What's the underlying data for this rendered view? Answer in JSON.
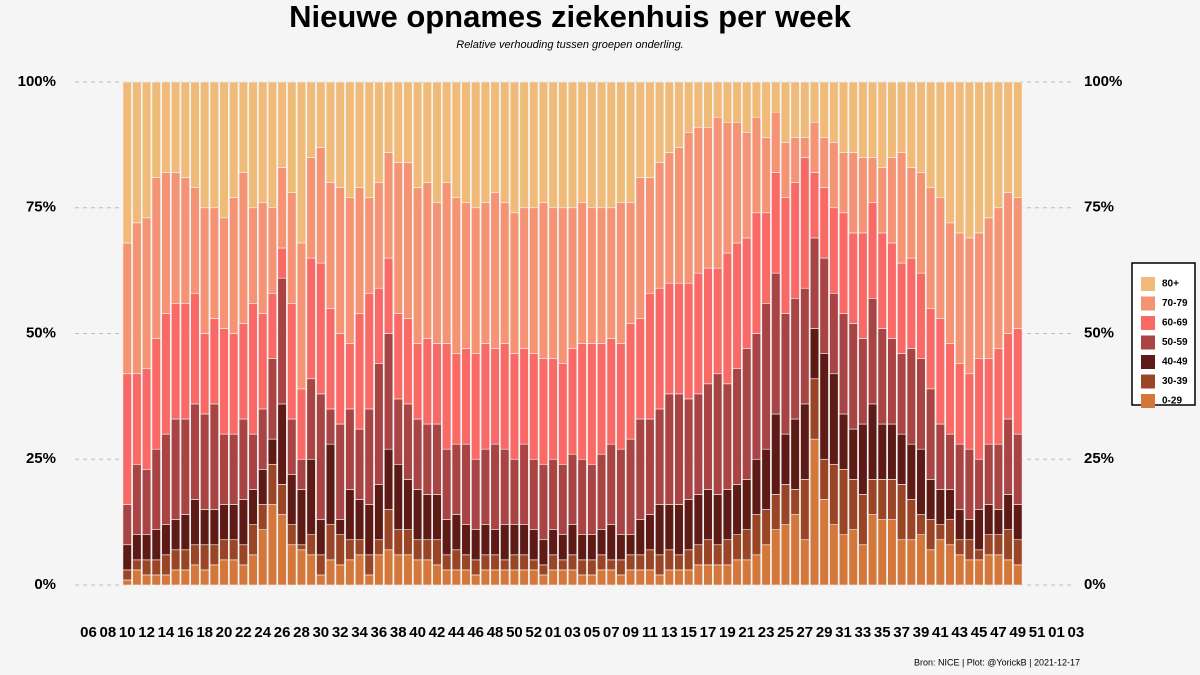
{
  "chart_data": {
    "type": "stacked_bar",
    "title": "Nieuwe opnames ziekenhuis per week",
    "subtitle": "Relative verhouding tussen groepen onderling.",
    "caption": "Bron: NICE | Plot: @YorickB |  2021-12-17",
    "categories": [
      "06",
      null,
      "08",
      null,
      "10",
      null,
      "12",
      null,
      "14",
      null,
      "16",
      null,
      "18",
      null,
      "20",
      null,
      "22",
      null,
      "24",
      null,
      "26",
      null,
      "28",
      null,
      "30",
      null,
      "32",
      null,
      "34",
      null,
      "36",
      null,
      "38",
      null,
      "40",
      null,
      "42",
      null,
      "44",
      null,
      "46",
      null,
      "48",
      null,
      "50",
      null,
      "52",
      null,
      "01",
      null,
      "03",
      null,
      "05",
      null,
      "07",
      null,
      "09",
      null,
      "11",
      null,
      "13",
      null,
      "15",
      null,
      "17",
      null,
      "19",
      null,
      "21",
      null,
      "23",
      null,
      "25",
      null,
      "27",
      null,
      "29",
      null,
      "31",
      null,
      "33",
      null,
      "35",
      null,
      "37",
      null,
      "39",
      null,
      "41",
      null,
      "43",
      null,
      "45",
      null,
      "47",
      null,
      "49",
      null,
      "51",
      null,
      "01",
      null,
      "03"
    ],
    "ylim": [
      0,
      100
    ],
    "yticks": [
      {
        "value": 0,
        "label": "0%"
      },
      {
        "value": 25,
        "label": "25%"
      },
      {
        "value": 50,
        "label": "50%"
      },
      {
        "value": 75,
        "label": "75%"
      },
      {
        "value": 100,
        "label": "100%"
      }
    ],
    "grid": true,
    "legend": "right",
    "series": [
      {
        "name": "0-29",
        "color": "#d4773a",
        "values": [
          null,
          null,
          null,
          null,
          1,
          3,
          2,
          2,
          2,
          3,
          3,
          4,
          3,
          4,
          5,
          5,
          4,
          6,
          11,
          16,
          14,
          8,
          7,
          6,
          2,
          5,
          4,
          5,
          6,
          2,
          6,
          7,
          6,
          6,
          5,
          5,
          4,
          3,
          3,
          3,
          2,
          3,
          3,
          3,
          3,
          3,
          3,
          2,
          3,
          3,
          3,
          2,
          2,
          3,
          3,
          2,
          3,
          3,
          3,
          2,
          3,
          3,
          3,
          4,
          4,
          4,
          4,
          5,
          5,
          6,
          8,
          11,
          12,
          14,
          9,
          29,
          17,
          12,
          10,
          11,
          8,
          14,
          13,
          13,
          9,
          9,
          10,
          7,
          9,
          8,
          6,
          5,
          5,
          6,
          6,
          5,
          4,
          null,
          null,
          null,
          null,
          null,
          null
        ]
      },
      {
        "name": "30-39",
        "color": "#9b4527",
        "values": [
          null,
          null,
          null,
          null,
          2,
          2,
          3,
          3,
          4,
          4,
          4,
          4,
          5,
          4,
          4,
          4,
          4,
          6,
          5,
          8,
          6,
          4,
          1,
          4,
          4,
          7,
          6,
          4,
          3,
          4,
          3,
          8,
          5,
          5,
          4,
          4,
          5,
          3,
          4,
          3,
          3,
          3,
          3,
          2,
          3,
          3,
          2,
          2,
          3,
          2,
          3,
          3,
          3,
          3,
          2,
          3,
          3,
          3,
          4,
          4,
          4,
          3,
          4,
          4,
          5,
          4,
          5,
          5,
          6,
          8,
          7,
          7,
          8,
          5,
          12,
          12,
          8,
          12,
          13,
          10,
          10,
          7,
          8,
          8,
          11,
          8,
          4,
          6,
          3,
          5,
          3,
          4,
          2,
          4,
          4,
          6,
          5,
          null,
          null,
          null,
          null,
          null,
          null
        ]
      },
      {
        "name": "40-49",
        "color": "#5e1a14",
        "values": [
          null,
          null,
          null,
          null,
          5,
          5,
          5,
          6,
          6,
          6,
          7,
          9,
          7,
          7,
          7,
          7,
          9,
          7,
          7,
          5,
          16,
          10,
          11,
          15,
          7,
          16,
          3,
          10,
          8,
          10,
          11,
          12,
          13,
          10,
          10,
          9,
          9,
          7,
          7,
          6,
          6,
          6,
          5,
          7,
          6,
          6,
          6,
          5,
          5,
          5,
          6,
          5,
          5,
          5,
          7,
          5,
          4,
          7,
          7,
          10,
          9,
          10,
          10,
          10,
          10,
          10,
          10,
          10,
          10,
          11,
          12,
          16,
          10,
          14,
          15,
          10,
          21,
          18,
          11,
          10,
          14,
          15,
          11,
          11,
          10,
          11,
          13,
          8,
          7,
          6,
          6,
          4,
          8,
          6,
          5,
          7,
          7,
          null,
          null,
          null,
          null,
          null,
          null
        ]
      },
      {
        "name": "50-59",
        "color": "#a84444",
        "values": [
          null,
          null,
          null,
          null,
          8,
          14,
          13,
          16,
          18,
          20,
          19,
          19,
          19,
          21,
          14,
          14,
          16,
          11,
          12,
          16,
          25,
          11,
          6,
          16,
          25,
          7,
          19,
          16,
          14,
          19,
          24,
          23,
          13,
          15,
          14,
          14,
          14,
          14,
          14,
          16,
          14,
          15,
          17,
          15,
          13,
          16,
          14,
          15,
          14,
          14,
          14,
          15,
          14,
          15,
          16,
          17,
          19,
          20,
          19,
          19,
          22,
          22,
          20,
          20,
          21,
          24,
          21,
          23,
          26,
          25,
          29,
          28,
          24,
          24,
          23,
          18,
          19,
          16,
          20,
          21,
          17,
          21,
          19,
          17,
          16,
          19,
          18,
          18,
          13,
          11,
          13,
          14,
          10,
          12,
          13,
          15,
          14,
          null,
          null,
          null,
          null,
          null,
          null
        ]
      },
      {
        "name": "60-69",
        "color": "#f96a66",
        "values": [
          null,
          null,
          null,
          null,
          26,
          18,
          20,
          22,
          24,
          23,
          23,
          22,
          16,
          17,
          21,
          20,
          19,
          26,
          19,
          13,
          6,
          23,
          14,
          24,
          26,
          20,
          18,
          13,
          23,
          23,
          15,
          15,
          17,
          17,
          15,
          17,
          16,
          21,
          18,
          19,
          21,
          21,
          19,
          21,
          21,
          19,
          21,
          21,
          20,
          20,
          21,
          23,
          24,
          22,
          21,
          21,
          23,
          20,
          25,
          24,
          22,
          22,
          23,
          24,
          23,
          21,
          26,
          25,
          22,
          24,
          18,
          20,
          23,
          23,
          26,
          13,
          14,
          17,
          20,
          18,
          21,
          19,
          19,
          19,
          18,
          18,
          17,
          16,
          21,
          18,
          16,
          15,
          20,
          17,
          19,
          17,
          21,
          null,
          null,
          null,
          null,
          null,
          null
        ]
      },
      {
        "name": "70-79",
        "color": "#f59474",
        "values": [
          null,
          null,
          null,
          null,
          26,
          30,
          30,
          32,
          28,
          26,
          25,
          21,
          25,
          22,
          22,
          27,
          30,
          19,
          22,
          17,
          16,
          22,
          29,
          20,
          23,
          25,
          29,
          29,
          25,
          19,
          21,
          21,
          30,
          31,
          31,
          31,
          28,
          32,
          31,
          29,
          29,
          28,
          31,
          28,
          28,
          28,
          29,
          31,
          30,
          31,
          28,
          28,
          27,
          27,
          26,
          28,
          24,
          28,
          23,
          25,
          26,
          27,
          30,
          29,
          28,
          30,
          26,
          24,
          21,
          19,
          15,
          12,
          11,
          9,
          4,
          10,
          10,
          13,
          12,
          16,
          15,
          9,
          13,
          17,
          22,
          18,
          20,
          24,
          24,
          24,
          26,
          27,
          25,
          28,
          28,
          28,
          26,
          null,
          null,
          null,
          null,
          null,
          null
        ]
      },
      {
        "name": "80+",
        "color": "#f0bb78",
        "values": [
          null,
          null,
          null,
          null,
          32,
          28,
          27,
          19,
          18,
          18,
          19,
          21,
          25,
          25,
          27,
          23,
          18,
          25,
          24,
          25,
          17,
          22,
          32,
          15,
          13,
          20,
          21,
          23,
          21,
          23,
          20,
          14,
          16,
          16,
          21,
          20,
          24,
          20,
          23,
          24,
          25,
          24,
          22,
          24,
          26,
          25,
          25,
          24,
          25,
          25,
          25,
          24,
          25,
          25,
          25,
          24,
          24,
          19,
          19,
          16,
          14,
          13,
          10,
          9,
          9,
          7,
          8,
          8,
          10,
          7,
          11,
          6,
          12,
          11,
          11,
          8,
          11,
          12,
          14,
          14,
          15,
          15,
          17,
          15,
          14,
          17,
          18,
          21,
          23,
          28,
          30,
          31,
          30,
          27,
          25,
          22,
          23,
          null,
          null,
          null,
          null,
          null,
          null
        ]
      }
    ]
  }
}
